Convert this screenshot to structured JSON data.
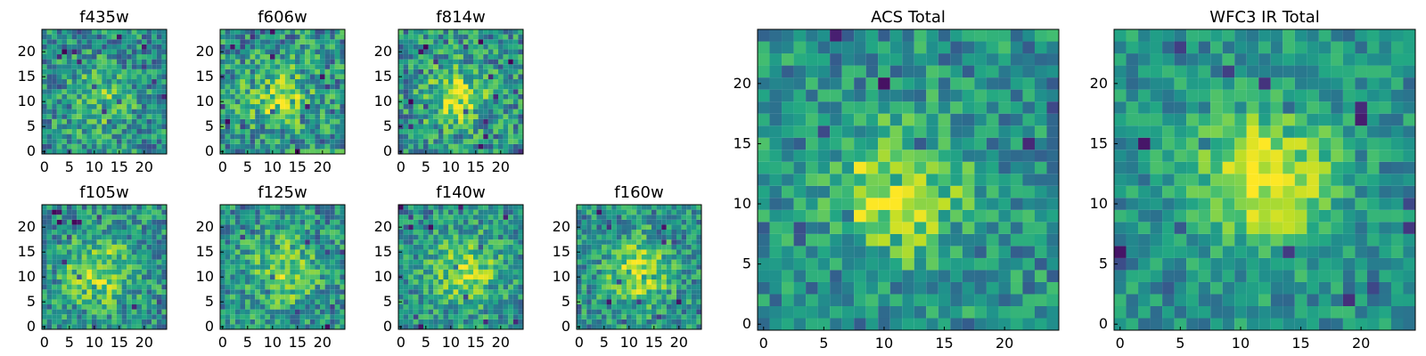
{
  "chart_data": [
    {
      "id": "f435w",
      "type": "heatmap",
      "title": "f435w",
      "grid_size": 25,
      "x_ticks": [
        0,
        5,
        10,
        15,
        20
      ],
      "y_ticks": [
        0,
        5,
        10,
        15,
        20
      ],
      "colormap": "viridis",
      "source_center": [
        11,
        10
      ],
      "source_radius": 4.5,
      "peak": 0.72,
      "noise": 0.26,
      "seed": 3
    },
    {
      "id": "f606w",
      "type": "heatmap",
      "title": "f606w",
      "grid_size": 25,
      "x_ticks": [
        0,
        5,
        10,
        15,
        20
      ],
      "y_ticks": [
        0,
        5,
        10,
        15,
        20
      ],
      "colormap": "viridis",
      "source_center": [
        11,
        11
      ],
      "source_radius": 4.2,
      "peak": 0.85,
      "noise": 0.28,
      "seed": 11
    },
    {
      "id": "f814w",
      "type": "heatmap",
      "title": "f814w",
      "grid_size": 25,
      "x_ticks": [
        0,
        5,
        10,
        15,
        20
      ],
      "y_ticks": [
        0,
        5,
        10,
        15,
        20
      ],
      "colormap": "viridis",
      "source_center": [
        11,
        11
      ],
      "source_radius": 4.2,
      "peak": 0.88,
      "noise": 0.27,
      "seed": 19
    },
    {
      "id": "f105w",
      "type": "heatmap",
      "title": "f105w",
      "grid_size": 25,
      "x_ticks": [
        0,
        5,
        10,
        15,
        20
      ],
      "y_ticks": [
        0,
        5,
        10,
        15,
        20
      ],
      "colormap": "viridis",
      "source_center": [
        11,
        11
      ],
      "source_radius": 4.8,
      "peak": 0.85,
      "noise": 0.24,
      "seed": 29
    },
    {
      "id": "f125w",
      "type": "heatmap",
      "title": "f125w",
      "grid_size": 25,
      "x_ticks": [
        0,
        5,
        10,
        15,
        20
      ],
      "y_ticks": [
        0,
        5,
        10,
        15,
        20
      ],
      "colormap": "viridis",
      "source_center": [
        12,
        11
      ],
      "source_radius": 5,
      "peak": 0.8,
      "noise": 0.24,
      "seed": 37
    },
    {
      "id": "f140w",
      "type": "heatmap",
      "title": "f140w",
      "grid_size": 25,
      "x_ticks": [
        0,
        5,
        10,
        15,
        20
      ],
      "y_ticks": [
        0,
        5,
        10,
        15,
        20
      ],
      "colormap": "viridis",
      "source_center": [
        13,
        11
      ],
      "source_radius": 4.8,
      "peak": 0.86,
      "noise": 0.23,
      "seed": 41
    },
    {
      "id": "f160w",
      "type": "heatmap",
      "title": "f160w",
      "grid_size": 25,
      "x_ticks": [
        0,
        5,
        10,
        15,
        20
      ],
      "y_ticks": [
        0,
        5,
        10,
        15,
        20
      ],
      "colormap": "viridis",
      "source_center": [
        12,
        11
      ],
      "source_radius": 4.6,
      "peak": 0.88,
      "noise": 0.24,
      "seed": 53
    },
    {
      "id": "acs-total",
      "type": "heatmap",
      "title": "ACS Total",
      "grid_size": 25,
      "x_ticks": [
        0,
        5,
        10,
        15,
        20
      ],
      "y_ticks": [
        0,
        5,
        10,
        15,
        20
      ],
      "colormap": "viridis",
      "source_center": [
        11,
        11
      ],
      "source_radius": 3.6,
      "peak": 0.95,
      "noise": 0.22,
      "seed": 61
    },
    {
      "id": "wfc3-ir-total",
      "type": "heatmap",
      "title": "WFC3 IR Total",
      "grid_size": 25,
      "x_ticks": [
        0,
        5,
        10,
        15,
        20
      ],
      "y_ticks": [
        0,
        5,
        10,
        15,
        20
      ],
      "colormap": "viridis",
      "source_center": [
        12,
        12
      ],
      "source_radius": 3.9,
      "peak": 0.98,
      "noise": 0.18,
      "seed": 73
    }
  ]
}
